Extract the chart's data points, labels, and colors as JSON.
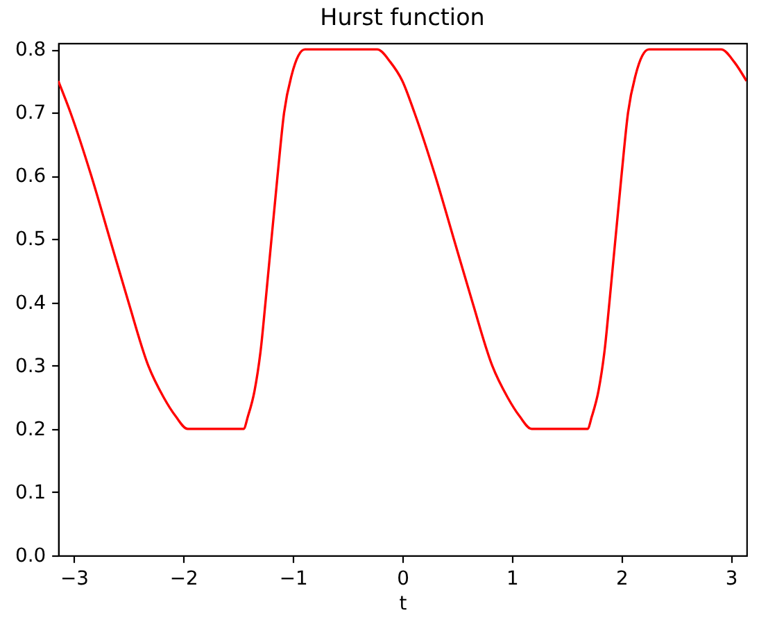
{
  "chart_data": {
    "type": "line",
    "title": "Hurst function",
    "xlabel": "t",
    "x": [
      -3.1416,
      -3.03,
      -2.84,
      -2.67,
      -2.5,
      -2.32,
      -2.18,
      -2.07,
      -1.96,
      -1.45,
      -1.41,
      -1.35,
      -1.29,
      -1.25,
      -1.14,
      -1.08,
      -1.01,
      -0.95,
      -0.89,
      -0.23,
      -0.11,
      0.0,
      0.11,
      0.3,
      0.47,
      0.64,
      0.82,
      0.96,
      1.07,
      1.18,
      1.69,
      1.73,
      1.79,
      1.85,
      1.89,
      2.0,
      2.06,
      2.13,
      2.19,
      2.25,
      2.91,
      3.03,
      3.1416
    ],
    "series": [
      {
        "color": "#ff0000",
        "values": [
          0.75,
          0.7,
          0.6,
          0.5,
          0.4,
          0.3,
          0.25,
          0.22,
          0.2,
          0.2,
          0.22,
          0.26,
          0.33,
          0.4,
          0.6,
          0.7,
          0.76,
          0.79,
          0.8,
          0.8,
          0.78,
          0.75,
          0.7,
          0.6,
          0.5,
          0.4,
          0.3,
          0.25,
          0.22,
          0.2,
          0.2,
          0.22,
          0.26,
          0.33,
          0.4,
          0.6,
          0.7,
          0.76,
          0.79,
          0.8,
          0.8,
          0.78,
          0.75
        ]
      }
    ],
    "xlim": [
      -3.1416,
      3.1416
    ],
    "ylim": [
      0,
      0.81
    ],
    "xticks": [
      -3,
      -2,
      -1,
      0,
      1,
      2,
      3
    ],
    "yticks": [
      {
        "value": 0,
        "label": "0.0"
      },
      0.1,
      0.2,
      0.3,
      0.4,
      0.5,
      0.6,
      0.7,
      0.8
    ]
  }
}
